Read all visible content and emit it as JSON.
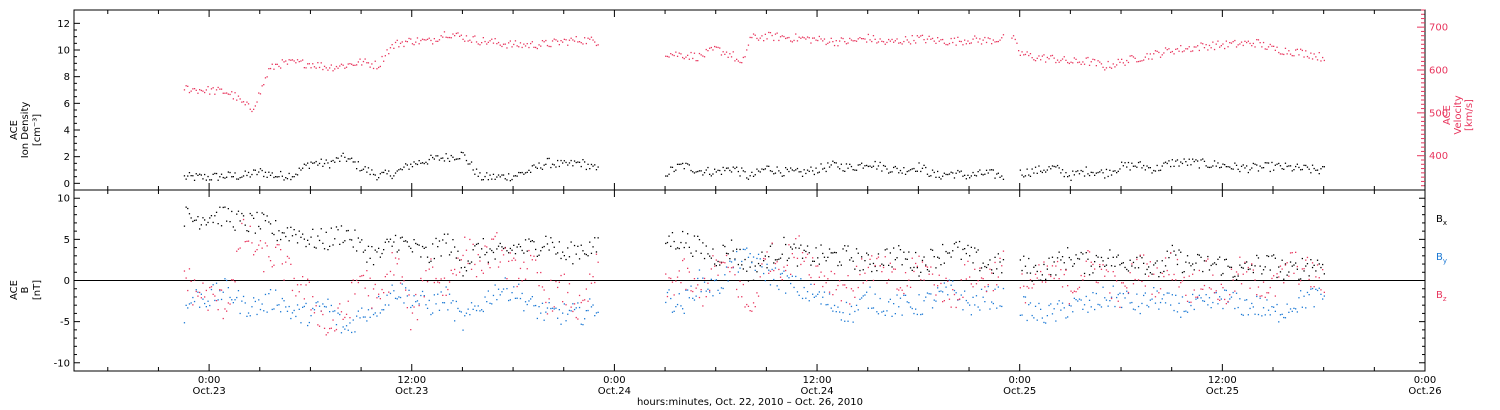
{
  "chart_data": [
    {
      "type": "scatter",
      "panel": "top",
      "ylabel_lines": [
        "ACE",
        "Ion Density",
        "[cm⁻³]"
      ],
      "ylim": [
        -0.5,
        13
      ],
      "yticks": [
        0,
        2,
        4,
        6,
        8,
        10,
        12
      ],
      "ylabel_right_lines": [
        "ACE",
        "Velocity",
        "[km/s]"
      ],
      "ylim_right": [
        320,
        740
      ],
      "yticks_right": [
        400,
        500,
        600,
        700
      ],
      "xlim_hours": [
        -8,
        72
      ],
      "series": [
        {
          "axis": "left",
          "color": "#000000",
          "segments": [
            {
              "x": [
                -1.5,
                0,
                1,
                2,
                3,
                4,
                5,
                6,
                7,
                8,
                9,
                10,
                11,
                12,
                13,
                14,
                15,
                16,
                17,
                18,
                19,
                20,
                21,
                22,
                23
              ],
              "y": [
                0.5,
                0.5,
                0.6,
                0.6,
                0.9,
                0.6,
                0.7,
                1.6,
                1.5,
                2.0,
                1.2,
                0.6,
                0.8,
                1.5,
                1.8,
                2.0,
                2.2,
                0.5,
                0.5,
                0.6,
                1.0,
                1.6,
                1.4,
                1.6,
                1.0
              ]
            },
            {
              "x": [
                27,
                28,
                29,
                30,
                31,
                32,
                33,
                34,
                35,
                36,
                37,
                38,
                39,
                40,
                41,
                42,
                43,
                44,
                45,
                46,
                47
              ],
              "y": [
                0.8,
                1.4,
                1.0,
                0.9,
                1.2,
                0.5,
                1.2,
                0.9,
                0.8,
                1.1,
                1.4,
                1.2,
                1.6,
                1.2,
                1.0,
                1.3,
                0.6,
                0.8,
                0.6,
                0.8,
                0.6
              ]
            },
            {
              "x": [
                48,
                49,
                50,
                51,
                52,
                53,
                54,
                55,
                56,
                57,
                58,
                59,
                60,
                61,
                62,
                63,
                64,
                65,
                66
              ],
              "y": [
                0.8,
                1.0,
                1.2,
                0.6,
                1.0,
                0.8,
                1.3,
                1.4,
                1.1,
                1.6,
                1.6,
                1.5,
                1.4,
                1.2,
                1.2,
                1.3,
                1.2,
                1.1,
                1.0
              ]
            }
          ]
        },
        {
          "axis": "right",
          "color": "#e8365e",
          "segments": [
            {
              "x": [
                -1.5,
                -1,
                0,
                1,
                1.5,
                2,
                2.5,
                3,
                3.5,
                4,
                5,
                6,
                7,
                8,
                9,
                10,
                10.5,
                11,
                12,
                13,
                14,
                15,
                16,
                17,
                18,
                19,
                20,
                21,
                22,
                23
              ],
              "y": [
                560,
                556,
                554,
                550,
                540,
                522,
                510,
                550,
                600,
                615,
                618,
                616,
                608,
                612,
                620,
                612,
                645,
                662,
                670,
                668,
                688,
                678,
                670,
                665,
                660,
                660,
                662,
                668,
                672,
                668
              ]
            },
            {
              "x": [
                27,
                28,
                29,
                30,
                31,
                31.5,
                32,
                33,
                34,
                35,
                36,
                37,
                38,
                39,
                40,
                41,
                42,
                43,
                44,
                45,
                46,
                47
              ],
              "y": [
                640,
                637,
                632,
                650,
                635,
                610,
                675,
                680,
                678,
                675,
                672,
                668,
                668,
                676,
                665,
                670,
                675,
                670,
                668,
                672,
                670,
                675
              ]
            },
            {
              "x": [
                47.5,
                48,
                49,
                50,
                51,
                52,
                53,
                54,
                55,
                56,
                57,
                58,
                59,
                60,
                61,
                62,
                63,
                64,
                65,
                66
              ],
              "y": [
                680,
                640,
                630,
                628,
                620,
                622,
                610,
                620,
                630,
                638,
                648,
                652,
                658,
                660,
                662,
                665,
                650,
                645,
                640,
                630
              ]
            }
          ]
        }
      ]
    },
    {
      "type": "scatter",
      "panel": "bottom",
      "ylabel_lines": [
        "ACE",
        "B",
        "[nT]"
      ],
      "ylim": [
        -11,
        11
      ],
      "yticks": [
        -10,
        -5,
        0,
        5,
        10
      ],
      "zero_line": true,
      "xlim_hours": [
        -8,
        72
      ],
      "xticks": [
        {
          "hours": 0,
          "label": [
            "0:00",
            "Oct.23"
          ]
        },
        {
          "hours": 12,
          "label": [
            "12:00",
            "Oct.23"
          ]
        },
        {
          "hours": 24,
          "label": [
            "0:00",
            "Oct.24"
          ]
        },
        {
          "hours": 36,
          "label": [
            "12:00",
            "Oct.24"
          ]
        },
        {
          "hours": 48,
          "label": [
            "0:00",
            "Oct.25"
          ]
        },
        {
          "hours": 60,
          "label": [
            "12:00",
            "Oct.25"
          ]
        },
        {
          "hours": 72,
          "label": [
            "0:00",
            "Oct.26"
          ]
        }
      ],
      "xlabel": "hours:minutes, Oct. 22, 2010 – Oct. 26, 2010",
      "series": [
        {
          "name": "B",
          "subscript": "x",
          "color": "#000000",
          "segments": [
            {
              "x": [
                -1.5,
                -1,
                0,
                1,
                2,
                3,
                4,
                5,
                6,
                7,
                8,
                9,
                10,
                11,
                12,
                13,
                14,
                15,
                16,
                17,
                18,
                19,
                20,
                21,
                22,
                23
              ],
              "y": [
                8,
                7.5,
                8,
                8,
                7,
                7,
                6,
                6,
                5,
                5,
                6,
                4,
                3,
                5,
                4,
                3,
                5,
                2,
                4,
                3,
                4,
                4,
                5,
                3,
                4,
                4
              ]
            },
            {
              "x": [
                27,
                28,
                29,
                30,
                31,
                32,
                33,
                34,
                35,
                36,
                37,
                38,
                39,
                40,
                41,
                42,
                43,
                44,
                45,
                46,
                47
              ],
              "y": [
                5,
                5,
                4,
                3,
                4,
                1,
                3,
                4,
                3,
                3,
                3,
                3,
                2,
                3,
                3,
                2,
                3,
                4,
                3,
                2,
                2
              ]
            },
            {
              "x": [
                48,
                49,
                50,
                51,
                52,
                53,
                54,
                55,
                56,
                57,
                58,
                59,
                60,
                61,
                62,
                63,
                64,
                65,
                66
              ],
              "y": [
                2,
                1,
                2,
                3,
                2,
                3,
                2,
                3,
                1,
                3,
                2,
                2,
                2,
                1,
                2,
                2,
                1,
                2,
                2
              ]
            }
          ]
        },
        {
          "name": "B",
          "subscript": "y",
          "color": "#1a78d4",
          "segments": [
            {
              "x": [
                -1.5,
                -1,
                0,
                1,
                2,
                3,
                4,
                5,
                6,
                7,
                8,
                9,
                10,
                11,
                12,
                13,
                14,
                15,
                16,
                17,
                18,
                19,
                20,
                21,
                22,
                23
              ],
              "y": [
                -4,
                -2,
                -2,
                -1,
                -3,
                -3,
                -2,
                -4,
                -4,
                -3,
                -6,
                -4,
                -3,
                -1,
                -2,
                -3,
                -2,
                -5,
                -3,
                -1,
                -1,
                -3,
                -4,
                -4,
                -4,
                -3
              ]
            },
            {
              "x": [
                27,
                28,
                29,
                30,
                31,
                32,
                33,
                34,
                35,
                36,
                37,
                38,
                39,
                40,
                41,
                42,
                43,
                44,
                45,
                46,
                47
              ],
              "y": [
                -2,
                -3,
                0,
                -1,
                2,
                3,
                1,
                0,
                -1,
                -2,
                -3,
                -4,
                -2,
                -3,
                -3,
                -3,
                -2,
                -1,
                -3,
                -2,
                -2
              ]
            },
            {
              "x": [
                48,
                49,
                50,
                51,
                52,
                53,
                54,
                55,
                56,
                57,
                58,
                59,
                60,
                61,
                62,
                63,
                64,
                65,
                66
              ],
              "y": [
                -3,
                -4,
                -4,
                -3,
                -3,
                -2,
                -2,
                -3,
                -2,
                -3,
                -3,
                -3,
                -2,
                -3,
                -3,
                -4,
                -3,
                -2,
                -2
              ]
            }
          ]
        },
        {
          "name": "B",
          "subscript": "z",
          "color": "#e8365e",
          "segments": [
            {
              "x": [
                -1.5,
                -1,
                0,
                1,
                2,
                3,
                4,
                5,
                6,
                7,
                8,
                9,
                10,
                11,
                12,
                13,
                14,
                15,
                16,
                17,
                18,
                19,
                20,
                21,
                22,
                23
              ],
              "y": [
                1,
                -1,
                -2,
                -3,
                6,
                3,
                3,
                0,
                -2,
                -6,
                -4,
                1,
                -3,
                3,
                -5,
                2,
                -1,
                4,
                2,
                4,
                1,
                2,
                -2,
                -1,
                -4,
                2
              ]
            },
            {
              "x": [
                27,
                28,
                29,
                30,
                31,
                32,
                33,
                34,
                35,
                36,
                37,
                38,
                39,
                40,
                41,
                42,
                43,
                44,
                45,
                46,
                47
              ],
              "y": [
                -1,
                1,
                -2,
                2,
                1,
                -4,
                3,
                2,
                4,
                1,
                0,
                -1,
                2,
                1,
                -1,
                2,
                0,
                -2,
                1,
                0,
                2
              ]
            },
            {
              "x": [
                48,
                49,
                50,
                51,
                52,
                53,
                54,
                55,
                56,
                57,
                58,
                59,
                60,
                61,
                62,
                63,
                64,
                65,
                66
              ],
              "y": [
                -1,
                0,
                1,
                -1,
                2,
                1,
                -2,
                2,
                0,
                2,
                -1,
                1,
                -2,
                1,
                0,
                -1,
                2,
                1,
                0
              ]
            }
          ]
        }
      ]
    }
  ]
}
